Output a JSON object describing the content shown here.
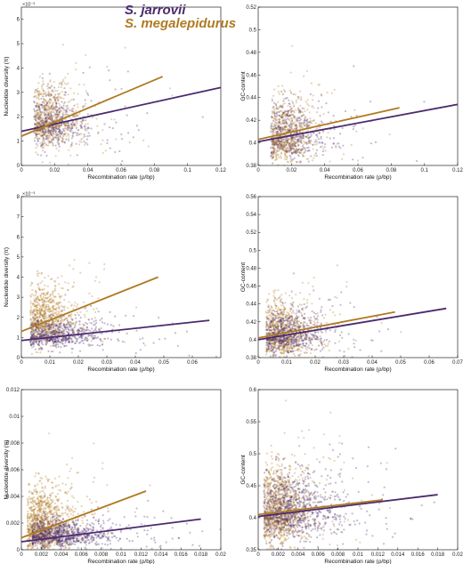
{
  "legend": [
    {
      "name": "S. jarrovii",
      "color": "#4b2a6e"
    },
    {
      "name": "S. megalepidurus",
      "color": "#b07a22"
    }
  ],
  "colors": {
    "jarrovii": "#4b2a6e",
    "megalepidurus": "#b07a22"
  },
  "chart_data": [
    {
      "type": "scatter",
      "xlabel": "Recombination rate (ρ/bp)",
      "ylabel": "Nucleotide diversity (π)",
      "xlim": [
        0,
        0.12
      ],
      "ylim": [
        0,
        6.5
      ],
      "y_multiplier": "×10⁻³",
      "xticks": [
        0,
        0.02,
        0.04,
        0.06,
        0.08,
        0.1,
        0.12
      ],
      "xtick_labels": [
        "0",
        "0.02",
        "0.04",
        "0.06",
        "0.08",
        "0.1",
        "0.12"
      ],
      "yticks": [
        0,
        1,
        2,
        3,
        4,
        5,
        6
      ],
      "ytick_labels": [
        "0",
        "1",
        "2",
        "3",
        "4",
        "5",
        "6"
      ],
      "grid": false,
      "series": [
        {
          "name": "S. jarrovii",
          "color": "#4b2a6e",
          "fit": {
            "x": [
              0,
              0.12
            ],
            "y": [
              1.4,
              3.2
            ]
          },
          "cloud": {
            "cx": 0.018,
            "cy": 1.7,
            "sx": 0.012,
            "sy": 0.55,
            "n": 450
          }
        },
        {
          "name": "S. megalepidurus",
          "color": "#b07a22",
          "fit": {
            "x": [
              0,
              0.085
            ],
            "y": [
              1.2,
              3.65
            ]
          },
          "cloud": {
            "cx": 0.016,
            "cy": 1.8,
            "sx": 0.009,
            "sy": 0.6,
            "n": 650
          }
        }
      ]
    },
    {
      "type": "scatter",
      "xlabel": "Recombination rate (ρ/bp)",
      "ylabel": "GC-content",
      "xlim": [
        0,
        0.12
      ],
      "ylim": [
        0.38,
        0.52
      ],
      "xticks": [
        0,
        0.02,
        0.04,
        0.06,
        0.08,
        0.1,
        0.12
      ],
      "xtick_labels": [
        "0",
        "0.02",
        "0.04",
        "0.06",
        "0.08",
        "0.1",
        "0.12"
      ],
      "yticks": [
        0.38,
        0.4,
        0.42,
        0.44,
        0.46,
        0.48,
        0.5,
        0.52
      ],
      "ytick_labels": [
        "0.38",
        "0.4",
        "0.42",
        "0.44",
        "0.46",
        "0.48",
        "0.5",
        "0.52"
      ],
      "grid": false,
      "series": [
        {
          "name": "S. jarrovii",
          "color": "#4b2a6e",
          "fit": {
            "x": [
              0,
              0.12
            ],
            "y": [
              0.401,
              0.434
            ]
          },
          "cloud": {
            "cx": 0.018,
            "cy": 0.406,
            "sx": 0.012,
            "sy": 0.012,
            "n": 450
          }
        },
        {
          "name": "S. megalepidurus",
          "color": "#b07a22",
          "fit": {
            "x": [
              0,
              0.085
            ],
            "y": [
              0.403,
              0.431
            ]
          },
          "cloud": {
            "cx": 0.016,
            "cy": 0.405,
            "sx": 0.009,
            "sy": 0.014,
            "n": 650
          }
        }
      ]
    },
    {
      "type": "scatter",
      "xlabel": "Recombination rate (ρ/bp)",
      "ylabel": "Nucleotide diversity (π)",
      "xlim": [
        0,
        0.07
      ],
      "ylim": [
        0,
        8
      ],
      "y_multiplier": "×10⁻³",
      "xticks": [
        0,
        0.01,
        0.02,
        0.03,
        0.04,
        0.05,
        0.06
      ],
      "xtick_labels": [
        "0",
        "0.01",
        "0.02",
        "0.03",
        "0.04",
        "0.05",
        "0.06"
      ],
      "yticks": [
        0,
        1,
        2,
        3,
        4,
        5,
        6,
        7,
        8
      ],
      "ytick_labels": [
        "0",
        "1",
        "2",
        "3",
        "4",
        "5",
        "6",
        "7",
        "8"
      ],
      "grid": false,
      "series": [
        {
          "name": "S. jarrovii",
          "color": "#4b2a6e",
          "fit": {
            "x": [
              0,
              0.066
            ],
            "y": [
              0.85,
              1.85
            ]
          },
          "cloud": {
            "cx": 0.011,
            "cy": 1.1,
            "sx": 0.009,
            "sy": 0.35,
            "n": 650
          }
        },
        {
          "name": "S. megalepidurus",
          "color": "#b07a22",
          "fit": {
            "x": [
              0,
              0.048
            ],
            "y": [
              1.3,
              4.0
            ]
          },
          "cloud": {
            "cx": 0.008,
            "cy": 1.9,
            "sx": 0.0055,
            "sy": 0.7,
            "n": 750
          }
        }
      ]
    },
    {
      "type": "scatter",
      "xlabel": "Recombination rate (ρ/bp)",
      "ylabel": "GC-content",
      "xlim": [
        0,
        0.07
      ],
      "ylim": [
        0.38,
        0.56
      ],
      "xticks": [
        0,
        0.01,
        0.02,
        0.03,
        0.04,
        0.05,
        0.06,
        0.07
      ],
      "xtick_labels": [
        "0",
        "0.01",
        "0.02",
        "0.03",
        "0.04",
        "0.05",
        "0.06",
        "0.07"
      ],
      "yticks": [
        0.38,
        0.4,
        0.42,
        0.44,
        0.46,
        0.48,
        0.5,
        0.52,
        0.54,
        0.56
      ],
      "ytick_labels": [
        "0.38",
        "0.4",
        "0.42",
        "0.44",
        "0.46",
        "0.48",
        "0.5",
        "0.52",
        "0.54",
        "0.56"
      ],
      "grid": false,
      "series": [
        {
          "name": "S. jarrovii",
          "color": "#4b2a6e",
          "fit": {
            "x": [
              0,
              0.066
            ],
            "y": [
              0.4,
              0.435
            ]
          },
          "cloud": {
            "cx": 0.009,
            "cy": 0.405,
            "sx": 0.007,
            "sy": 0.012,
            "n": 650
          }
        },
        {
          "name": "S. megalepidurus",
          "color": "#b07a22",
          "fit": {
            "x": [
              0,
              0.048
            ],
            "y": [
              0.402,
              0.431
            ]
          },
          "cloud": {
            "cx": 0.008,
            "cy": 0.406,
            "sx": 0.006,
            "sy": 0.015,
            "n": 750
          }
        }
      ]
    },
    {
      "type": "scatter",
      "xlabel": "Recombination rate (ρ/bp)",
      "ylabel": "Nucleotide diversity (π)",
      "xlim": [
        0,
        0.02
      ],
      "ylim": [
        0,
        0.012
      ],
      "xticks": [
        0,
        0.002,
        0.004,
        0.006,
        0.008,
        0.01,
        0.012,
        0.014,
        0.016,
        0.018,
        0.02
      ],
      "xtick_labels": [
        "0",
        "0.002",
        "0.004",
        "0.006",
        "0.008",
        "0.01",
        "0.012",
        "0.014",
        "0.016",
        "0.018",
        "0.02"
      ],
      "yticks": [
        0,
        0.002,
        0.004,
        0.006,
        0.008,
        0.01,
        0.012
      ],
      "ytick_labels": [
        "0",
        "0.002",
        "0.004",
        "0.006",
        "0.008",
        "0.01",
        "0.012"
      ],
      "grid": false,
      "series": [
        {
          "name": "S. jarrovii",
          "color": "#4b2a6e",
          "fit": {
            "x": [
              0,
              0.018
            ],
            "y": [
              0.0006,
              0.0023
            ]
          },
          "cloud": {
            "cx": 0.0035,
            "cy": 0.0011,
            "sx": 0.0028,
            "sy": 0.0005,
            "n": 900
          }
        },
        {
          "name": "S. megalepidurus",
          "color": "#b07a22",
          "fit": {
            "x": [
              0,
              0.0125
            ],
            "y": [
              0.0009,
              0.0044
            ]
          },
          "cloud": {
            "cx": 0.002,
            "cy": 0.0018,
            "sx": 0.0016,
            "sy": 0.0012,
            "n": 1000
          }
        }
      ]
    },
    {
      "type": "scatter",
      "xlabel": "Recombination rate (ρ/bp)",
      "ylabel": "GC-content",
      "xlim": [
        0,
        0.02
      ],
      "ylim": [
        0.35,
        0.6
      ],
      "xticks": [
        0,
        0.002,
        0.004,
        0.006,
        0.008,
        0.01,
        0.012,
        0.014,
        0.016,
        0.018,
        0.02
      ],
      "xtick_labels": [
        "0",
        "0.002",
        "0.004",
        "0.006",
        "0.008",
        "0.01",
        "0.012",
        "0.014",
        "0.016",
        "0.018",
        "0.02"
      ],
      "yticks": [
        0.35,
        0.4,
        0.45,
        0.5,
        0.55,
        0.6
      ],
      "ytick_labels": [
        "0.35",
        "0.4",
        "0.45",
        "0.5",
        "0.55",
        "0.6"
      ],
      "grid": false,
      "series": [
        {
          "name": "S. jarrovii",
          "color": "#4b2a6e",
          "fit": {
            "x": [
              0,
              0.018
            ],
            "y": [
              0.402,
              0.436
            ]
          },
          "cloud": {
            "cx": 0.003,
            "cy": 0.41,
            "sx": 0.0028,
            "sy": 0.025,
            "n": 900
          }
        },
        {
          "name": "S. megalepidurus",
          "color": "#b07a22",
          "fit": {
            "x": [
              0,
              0.0125
            ],
            "y": [
              0.405,
              0.428
            ]
          },
          "cloud": {
            "cx": 0.002,
            "cy": 0.41,
            "sx": 0.0016,
            "sy": 0.03,
            "n": 1000
          }
        }
      ]
    }
  ]
}
